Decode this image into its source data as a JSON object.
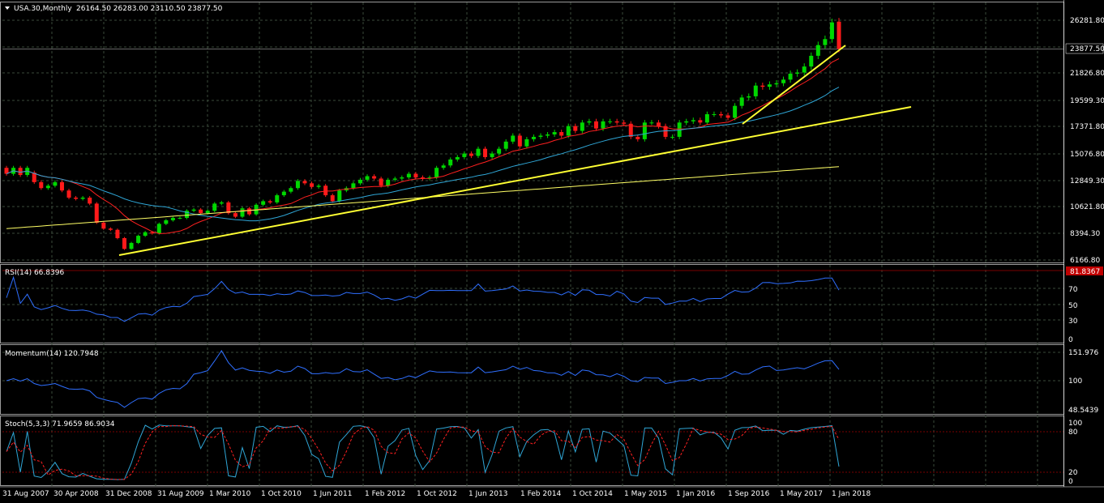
{
  "colors": {
    "background": "#000000",
    "grid": "#3a4a3a",
    "bull_candle": "#00d800",
    "bear_candle": "#ff1a1a",
    "trendline": "#ffff33",
    "ma_fast": "#ff2020",
    "ma_mid": "#2fa6d6",
    "ma_slow": "#ffff66",
    "indicator_line": "#2f6fff",
    "signal_line": "#ff2020",
    "level_line": "#7a0000",
    "text": "#ffffff",
    "current_price_box": "#ff2020"
  },
  "header": {
    "dropdown_icon": "triangle-down-icon",
    "symbol": "USA.30,Monthly",
    "ohlc": "26164.50 26283.00 23110.50 23877.50"
  },
  "price_axis": {
    "labels": [
      "26281.80",
      "23877.50",
      "21826.80",
      "19599.30",
      "17371.80",
      "15076.80",
      "12849.30",
      "10621.80",
      "8394.30",
      "6166.80"
    ]
  },
  "rsi_panel": {
    "label": "RSI(14) 66.8396",
    "current_value_tag": "81.8367",
    "axis_labels": [
      "70",
      "50",
      "30",
      "0"
    ]
  },
  "momentum_panel": {
    "label": "Momentum(14) 120.7948",
    "axis_labels": [
      "151.976",
      "100",
      "48.5439"
    ]
  },
  "stoch_panel": {
    "label": "Stoch(5,3,3) 71.9659 86.9034",
    "axis_labels": [
      "100",
      "80",
      "20",
      "0"
    ]
  },
  "time_axis": {
    "labels": [
      "31 Aug 2007",
      "30 Apr 2008",
      "31 Dec 2008",
      "31 Aug 2009",
      "1 Mar 2010",
      "1 Oct 2010",
      "1 Jun 2011",
      "1 Feb 2012",
      "1 Oct 2012",
      "1 Jun 2013",
      "1 Feb 2014",
      "1 Oct 2014",
      "1 May 2015",
      "1 Jan 2016",
      "1 Sep 2016",
      "1 May 2017",
      "1 Jan 2018"
    ]
  },
  "chart_data": {
    "type": "candlestick",
    "title": "USA.30,Monthly",
    "price_range": [
      6166.8,
      26900
    ],
    "last_price": 23877.5,
    "candles": [
      {
        "o": 13900,
        "c": 13400
      },
      {
        "o": 13400,
        "c": 13900
      },
      {
        "o": 13900,
        "c": 13300
      },
      {
        "o": 13300,
        "c": 13900
      },
      {
        "o": 13500,
        "c": 12700
      },
      {
        "o": 12700,
        "c": 12200
      },
      {
        "o": 12200,
        "c": 12400
      },
      {
        "o": 12400,
        "c": 12700
      },
      {
        "o": 12700,
        "c": 12000
      },
      {
        "o": 12000,
        "c": 11400
      },
      {
        "o": 11400,
        "c": 11300
      },
      {
        "o": 11300,
        "c": 11400
      },
      {
        "o": 11400,
        "c": 10900
      },
      {
        "o": 10900,
        "c": 9300
      },
      {
        "o": 9300,
        "c": 8800
      },
      {
        "o": 8800,
        "c": 8700
      },
      {
        "o": 8700,
        "c": 8000
      },
      {
        "o": 8000,
        "c": 7100
      },
      {
        "o": 7100,
        "c": 7600
      },
      {
        "o": 7600,
        "c": 8200
      },
      {
        "o": 8200,
        "c": 8500
      },
      {
        "o": 8500,
        "c": 8400
      },
      {
        "o": 8400,
        "c": 9200
      },
      {
        "o": 9200,
        "c": 9500
      },
      {
        "o": 9500,
        "c": 9700
      },
      {
        "o": 9700,
        "c": 9700
      },
      {
        "o": 9700,
        "c": 10300
      },
      {
        "o": 10300,
        "c": 10400
      },
      {
        "o": 10400,
        "c": 10100
      },
      {
        "o": 10100,
        "c": 10300
      },
      {
        "o": 10300,
        "c": 10900
      },
      {
        "o": 10900,
        "c": 11000
      },
      {
        "o": 11000,
        "c": 10100
      },
      {
        "o": 10100,
        "c": 9800
      },
      {
        "o": 9800,
        "c": 10500
      },
      {
        "o": 10500,
        "c": 10000
      },
      {
        "o": 10000,
        "c": 10800
      },
      {
        "o": 10800,
        "c": 11100
      },
      {
        "o": 11100,
        "c": 11000
      },
      {
        "o": 11000,
        "c": 11600
      },
      {
        "o": 11600,
        "c": 11900
      },
      {
        "o": 11900,
        "c": 12200
      },
      {
        "o": 12200,
        "c": 12800
      },
      {
        "o": 12800,
        "c": 12600
      },
      {
        "o": 12600,
        "c": 12300
      },
      {
        "o": 12300,
        "c": 12400
      },
      {
        "o": 12400,
        "c": 11600
      },
      {
        "o": 11600,
        "c": 11100
      },
      {
        "o": 11100,
        "c": 12000
      },
      {
        "o": 12000,
        "c": 12200
      },
      {
        "o": 12200,
        "c": 12600
      },
      {
        "o": 12600,
        "c": 12900
      },
      {
        "o": 12900,
        "c": 13200
      },
      {
        "o": 13200,
        "c": 13000
      },
      {
        "o": 13000,
        "c": 12400
      },
      {
        "o": 12400,
        "c": 12900
      },
      {
        "o": 12900,
        "c": 13000
      },
      {
        "o": 13000,
        "c": 13100
      },
      {
        "o": 13100,
        "c": 13400
      },
      {
        "o": 13400,
        "c": 13100
      },
      {
        "o": 13100,
        "c": 13000
      },
      {
        "o": 13000,
        "c": 13100
      },
      {
        "o": 13100,
        "c": 13900
      },
      {
        "o": 13900,
        "c": 14100
      },
      {
        "o": 14100,
        "c": 14600
      },
      {
        "o": 14600,
        "c": 14800
      },
      {
        "o": 14800,
        "c": 15100
      },
      {
        "o": 15100,
        "c": 14900
      },
      {
        "o": 14900,
        "c": 15500
      },
      {
        "o": 15500,
        "c": 14800
      },
      {
        "o": 14800,
        "c": 15100
      },
      {
        "o": 15100,
        "c": 15500
      },
      {
        "o": 15500,
        "c": 16100
      },
      {
        "o": 16100,
        "c": 16600
      },
      {
        "o": 16600,
        "c": 15700
      },
      {
        "o": 15700,
        "c": 16300
      },
      {
        "o": 16300,
        "c": 16500
      },
      {
        "o": 16500,
        "c": 16600
      },
      {
        "o": 16600,
        "c": 16700
      },
      {
        "o": 16700,
        "c": 16900
      },
      {
        "o": 16900,
        "c": 16600
      },
      {
        "o": 16600,
        "c": 17400
      },
      {
        "o": 17400,
        "c": 17000
      },
      {
        "o": 17000,
        "c": 17700
      },
      {
        "o": 17700,
        "c": 17800
      },
      {
        "o": 17800,
        "c": 17200
      },
      {
        "o": 17200,
        "c": 17800
      },
      {
        "o": 17800,
        "c": 17800
      },
      {
        "o": 17800,
        "c": 17700
      },
      {
        "o": 17700,
        "c": 17600
      },
      {
        "o": 17600,
        "c": 16500
      },
      {
        "o": 16500,
        "c": 16300
      },
      {
        "o": 16300,
        "c": 17700
      },
      {
        "o": 17700,
        "c": 17700
      },
      {
        "o": 17700,
        "c": 17400
      },
      {
        "o": 17400,
        "c": 16500
      },
      {
        "o": 16500,
        "c": 16500
      },
      {
        "o": 16500,
        "c": 17700
      },
      {
        "o": 17700,
        "c": 17800
      },
      {
        "o": 17800,
        "c": 17900
      },
      {
        "o": 17900,
        "c": 17700
      },
      {
        "o": 17700,
        "c": 18400
      },
      {
        "o": 18400,
        "c": 18400
      },
      {
        "o": 18400,
        "c": 18300
      },
      {
        "o": 18300,
        "c": 18100
      },
      {
        "o": 18100,
        "c": 19100
      },
      {
        "o": 19100,
        "c": 19800
      },
      {
        "o": 19800,
        "c": 19900
      },
      {
        "o": 19900,
        "c": 20800
      },
      {
        "o": 20800,
        "c": 20700
      },
      {
        "o": 20700,
        "c": 20900
      },
      {
        "o": 20900,
        "c": 21000
      },
      {
        "o": 21000,
        "c": 21300
      },
      {
        "o": 21300,
        "c": 21800
      },
      {
        "o": 21800,
        "c": 21900
      },
      {
        "o": 21900,
        "c": 22400
      },
      {
        "o": 22400,
        "c": 23300
      },
      {
        "o": 23300,
        "c": 24200
      },
      {
        "o": 24200,
        "c": 24700
      },
      {
        "o": 24700,
        "c": 26100
      },
      {
        "o": 26164.5,
        "c": 23877.5
      }
    ]
  }
}
